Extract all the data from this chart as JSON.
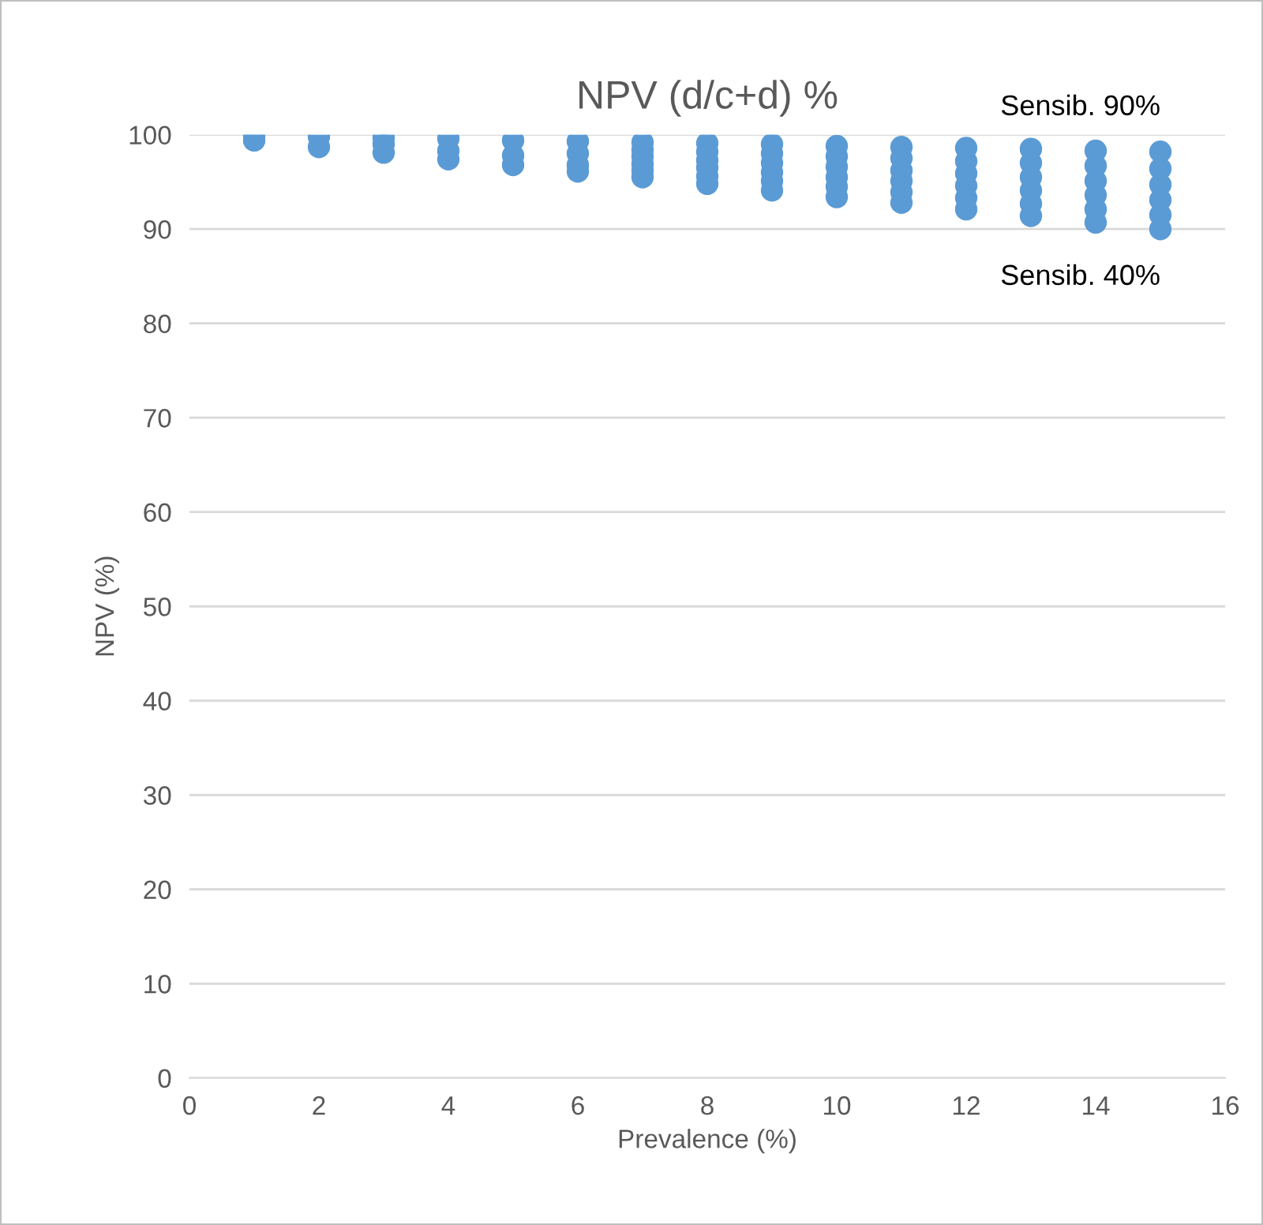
{
  "chart_data": {
    "type": "scatter",
    "title": "NPV (d/c+d) %",
    "xlabel": "Prevalence (%)",
    "ylabel": "NPV (%)",
    "xlim": [
      0,
      16
    ],
    "xticks": [
      0,
      2,
      4,
      6,
      8,
      10,
      12,
      14,
      16
    ],
    "ylim": [
      0,
      100
    ],
    "yticks": [
      0,
      10,
      20,
      30,
      40,
      50,
      60,
      70,
      80,
      90,
      100
    ],
    "grid": "y",
    "marker": "circle",
    "annotations": [
      {
        "text": "Sensib. 90%",
        "x": 15,
        "y": 98.2
      },
      {
        "text": "Sensib. 40%",
        "x": 15,
        "y": 90.0
      }
    ],
    "series": [
      {
        "color": "#5b9bd5",
        "x": [
          1,
          1,
          2,
          2,
          3,
          3,
          3,
          4,
          4,
          4,
          5,
          5,
          5,
          6,
          6,
          6,
          6,
          7,
          7,
          7,
          7,
          7,
          7,
          8,
          8,
          8,
          8,
          8,
          8,
          9,
          9,
          9,
          9,
          9,
          9,
          10,
          10,
          10,
          10,
          10,
          10,
          11,
          11,
          11,
          11,
          11,
          11,
          12,
          12,
          12,
          12,
          12,
          12,
          13,
          13,
          13,
          13,
          13,
          13,
          14,
          14,
          14,
          14,
          14,
          14,
          15,
          15,
          15,
          15,
          15,
          15
        ],
        "values": [
          99.4,
          99.9,
          98.7,
          99.8,
          98.1,
          99.0,
          99.7,
          97.4,
          98.3,
          99.6,
          96.8,
          97.8,
          99.4,
          96.1,
          96.8,
          98.0,
          99.3,
          95.5,
          96.2,
          96.9,
          97.7,
          98.4,
          99.2,
          94.8,
          95.6,
          96.5,
          97.3,
          98.2,
          99.1,
          94.1,
          95.1,
          96.0,
          97.0,
          98.0,
          99.0,
          93.4,
          94.5,
          95.5,
          96.6,
          97.7,
          98.8,
          92.8,
          93.9,
          95.1,
          96.2,
          97.5,
          98.7,
          92.1,
          93.3,
          94.6,
          95.9,
          97.2,
          98.6,
          91.4,
          92.7,
          94.1,
          95.5,
          97.0,
          98.5,
          90.7,
          92.1,
          93.6,
          95.1,
          96.7,
          98.3,
          90.0,
          91.5,
          93.1,
          94.7,
          96.4,
          98.2
        ]
      }
    ]
  }
}
